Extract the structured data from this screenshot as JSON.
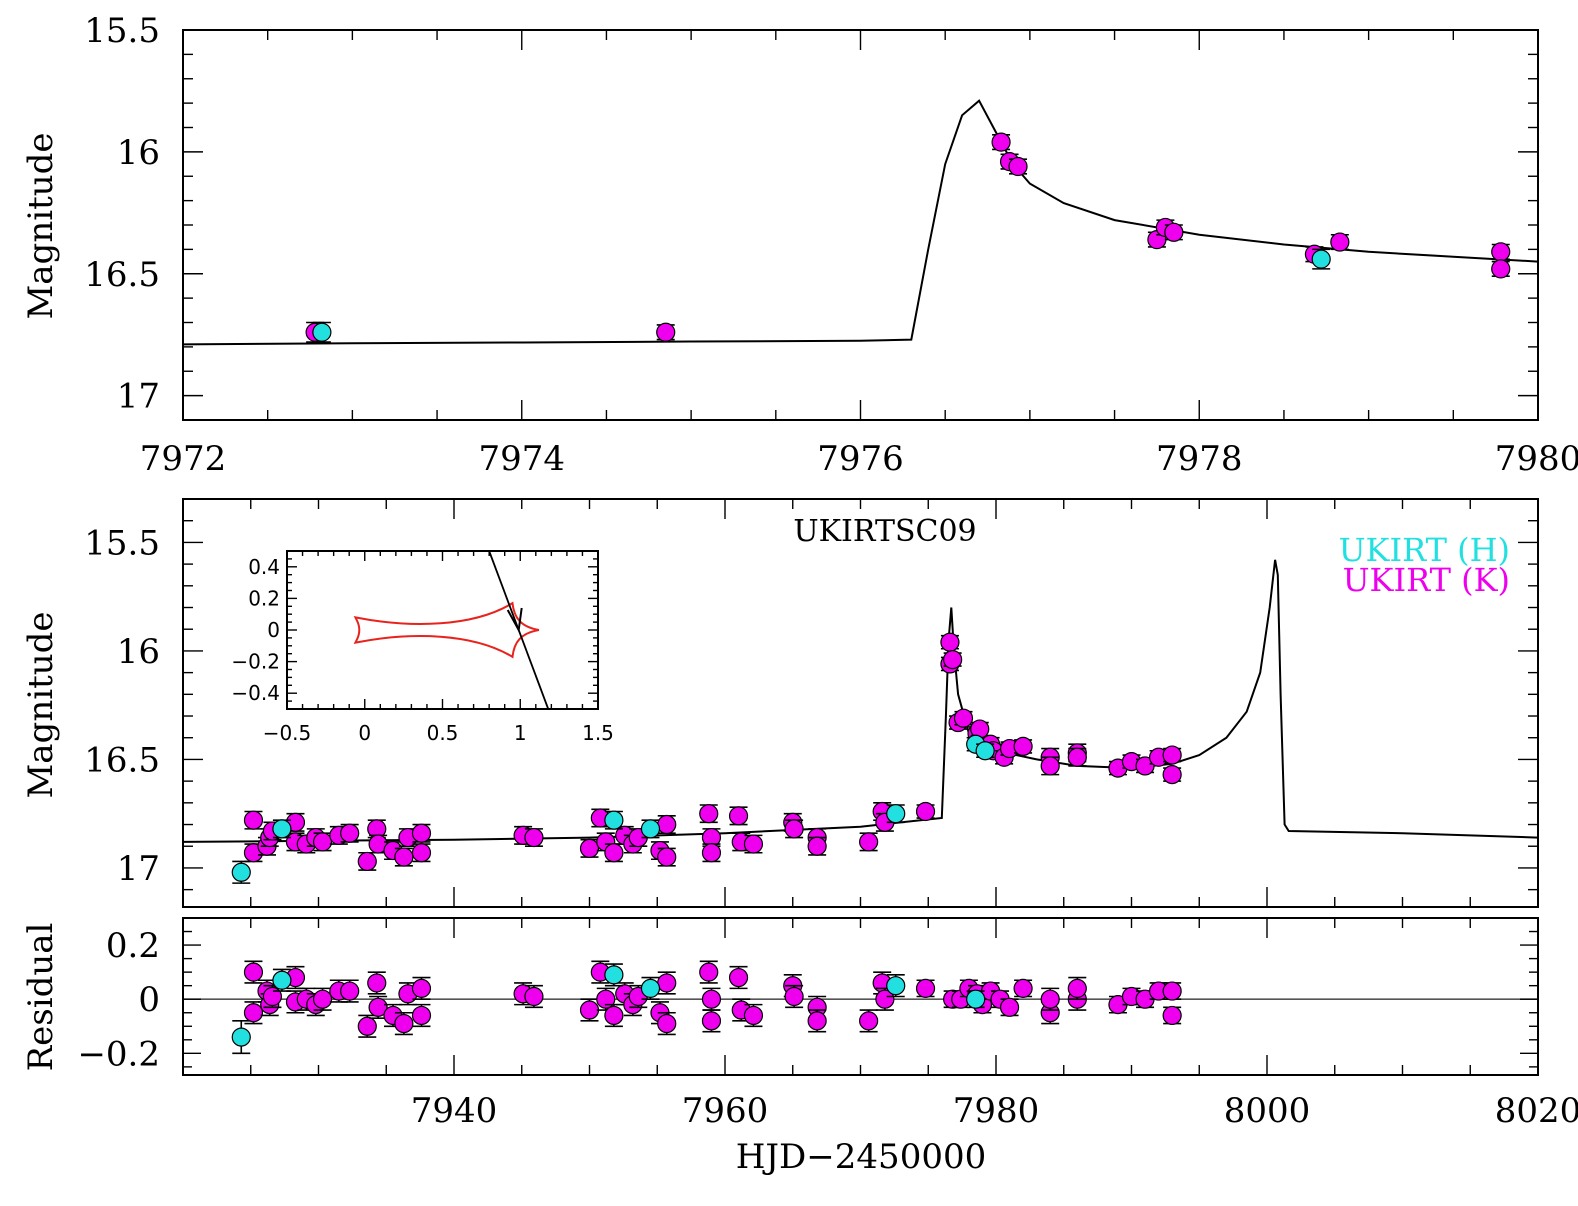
{
  "colors": {
    "H": "#22e0e0",
    "K": "#ee00ee",
    "model": "#000000",
    "caustic": "#e8231d",
    "residual_zero": "#555555"
  },
  "chart_data": [
    {
      "type": "scatter",
      "panel": "top",
      "ylabel": "Magnitude",
      "xlim": [
        7972,
        7980
      ],
      "ylim": [
        17.1,
        15.5
      ],
      "y_inverted": true,
      "xticks": [
        "7972",
        "7974",
        "7976",
        "7978",
        "7980"
      ],
      "yticks": [
        "15.5",
        "16",
        "16.5",
        "17"
      ],
      "model": {
        "x": [
          7972,
          7973,
          7974,
          7975,
          7976,
          7976.3,
          7976.4,
          7976.5,
          7976.6,
          7976.7,
          7976.8,
          7976.9,
          7977.0,
          7977.2,
          7977.5,
          7978,
          7978.5,
          7979,
          7979.5,
          7980
        ],
        "y": [
          16.79,
          16.785,
          16.782,
          16.778,
          16.775,
          16.77,
          16.4,
          16.05,
          15.85,
          15.79,
          15.92,
          16.05,
          16.13,
          16.21,
          16.28,
          16.34,
          16.38,
          16.41,
          16.43,
          16.45
        ]
      },
      "series": [
        {
          "name": "UKIRT (H)",
          "x": [
            7972.82,
            7978.72
          ],
          "y": [
            16.74,
            16.44
          ],
          "err": [
            0.04,
            0.04
          ]
        },
        {
          "name": "UKIRT (K)",
          "x": [
            7972.78,
            7974.85,
            7976.83,
            7976.88,
            7976.93,
            7977.75,
            7977.8,
            7977.85,
            7978.68,
            7978.83,
            7979.78,
            7979.78
          ],
          "y": [
            16.74,
            16.74,
            15.96,
            16.04,
            16.06,
            16.36,
            16.31,
            16.33,
            16.42,
            16.37,
            16.41,
            16.48
          ],
          "err": [
            0.04,
            0.03,
            0.03,
            0.03,
            0.03,
            0.03,
            0.03,
            0.03,
            0.03,
            0.03,
            0.03,
            0.03
          ]
        }
      ]
    },
    {
      "type": "scatter",
      "panel": "middle",
      "title": "UKIRTSC09",
      "ylabel": "Magnitude",
      "xlim": [
        7920,
        8020
      ],
      "ylim": [
        17.18,
        15.3
      ],
      "y_inverted": true,
      "yticks": [
        "15.5",
        "16",
        "16.5",
        "17"
      ],
      "legend": [
        "UKIRT (H)",
        "UKIRT (K)"
      ],
      "legend_position": "top-right",
      "model": {
        "x": [
          7920,
          7930,
          7940,
          7950,
          7960,
          7970,
          7976.0,
          7976.3,
          7976.5,
          7976.7,
          7976.9,
          7977.2,
          7978,
          7980,
          7983,
          7986,
          7990,
          7993,
          7995,
          7997,
          7998.5,
          7999.5,
          8000.2,
          8000.6,
          8000.8,
          8001.0,
          8001.3,
          8001.6,
          8010,
          8020
        ],
        "y": [
          16.88,
          16.875,
          16.87,
          16.86,
          16.84,
          16.81,
          16.77,
          16.3,
          15.95,
          15.8,
          16.0,
          16.2,
          16.38,
          16.46,
          16.5,
          16.53,
          16.54,
          16.52,
          16.48,
          16.4,
          16.28,
          16.1,
          15.8,
          15.58,
          15.65,
          16.2,
          16.8,
          16.83,
          16.84,
          16.86
        ]
      },
      "series": [
        {
          "name": "UKIRT (H)",
          "x": [
            7924.3,
            7927.3,
            7951.8,
            7954.5,
            7972.6,
            7978.5,
            7979.2
          ],
          "y": [
            17.02,
            16.82,
            16.78,
            16.82,
            16.75,
            16.43,
            16.46
          ],
          "err": [
            0.05,
            0.04,
            0.04,
            0.04,
            0.04,
            0.03,
            0.03
          ]
        },
        {
          "name": "UKIRT (K)",
          "x": [
            7925.2,
            7925.2,
            7926.2,
            7926.4,
            7926.6,
            7928.3,
            7928.3,
            7929.1,
            7929.8,
            7930.3,
            7931.5,
            7932.3,
            7933.6,
            7934.3,
            7934.4,
            7935.5,
            7936.3,
            7936.6,
            7937.6,
            7937.6,
            7945.1,
            7945.9,
            7950.0,
            7950.8,
            7951.2,
            7951.8,
            7952.6,
            7953.2,
            7953.6,
            7955.2,
            7955.7,
            7955.7,
            7958.8,
            7959.0,
            7959.0,
            7961.0,
            7961.2,
            7962.1,
            7965.0,
            7965.1,
            7966.8,
            7966.8,
            7970.6,
            7971.6,
            7971.8,
            7974.8,
            7976.6,
            7976.6,
            7976.8,
            7977.2,
            7977.6,
            7978.6,
            7978.8,
            7979.6,
            7979.8,
            7980.6,
            7981.0,
            7982.0,
            7984.0,
            7984.0,
            7986.0,
            7986.0,
            7989.0,
            7990.0,
            7991.0,
            7992.0,
            7993.0,
            7993.0
          ],
          "y": [
            16.78,
            16.93,
            16.9,
            16.86,
            16.83,
            16.79,
            16.88,
            16.89,
            16.86,
            16.88,
            16.85,
            16.84,
            16.97,
            16.82,
            16.89,
            16.92,
            16.95,
            16.86,
            16.84,
            16.93,
            16.85,
            16.86,
            16.91,
            16.77,
            16.88,
            16.93,
            16.85,
            16.89,
            16.86,
            16.92,
            16.95,
            16.8,
            16.75,
            16.86,
            16.93,
            16.76,
            16.88,
            16.89,
            16.79,
            16.82,
            16.86,
            16.9,
            16.88,
            16.74,
            16.79,
            16.74,
            15.96,
            16.06,
            16.04,
            16.33,
            16.31,
            16.38,
            16.36,
            16.43,
            16.46,
            16.49,
            16.45,
            16.44,
            16.49,
            16.53,
            16.47,
            16.49,
            16.54,
            16.51,
            16.53,
            16.49,
            16.48,
            16.57
          ],
          "err": [
            0.04,
            0.04,
            0.04,
            0.04,
            0.04,
            0.04,
            0.04,
            0.04,
            0.04,
            0.04,
            0.04,
            0.04,
            0.04,
            0.04,
            0.04,
            0.04,
            0.04,
            0.04,
            0.04,
            0.04,
            0.04,
            0.04,
            0.04,
            0.04,
            0.04,
            0.04,
            0.04,
            0.04,
            0.04,
            0.04,
            0.04,
            0.04,
            0.04,
            0.04,
            0.04,
            0.04,
            0.04,
            0.04,
            0.04,
            0.04,
            0.04,
            0.04,
            0.04,
            0.04,
            0.04,
            0.03,
            0.03,
            0.03,
            0.03,
            0.03,
            0.03,
            0.03,
            0.03,
            0.03,
            0.03,
            0.03,
            0.03,
            0.03,
            0.04,
            0.04,
            0.04,
            0.04,
            0.03,
            0.03,
            0.03,
            0.03,
            0.03,
            0.03
          ]
        }
      ]
    },
    {
      "type": "scatter",
      "panel": "residual",
      "ylabel": "Residual",
      "xlabel": "HJD−2450000",
      "xlim": [
        7920,
        8020
      ],
      "ylim": [
        -0.28,
        0.3
      ],
      "xticks": [
        "7940",
        "7960",
        "7980",
        "8000",
        "8020"
      ],
      "yticks": [
        "0.2",
        "0",
        "−0.2"
      ],
      "series": [
        {
          "name": "UKIRT (H)",
          "x": [
            7924.3,
            7927.3,
            7951.8,
            7954.5,
            7972.6,
            7978.5
          ],
          "y": [
            -0.14,
            0.07,
            0.09,
            0.04,
            0.05,
            0.0
          ],
          "err": [
            0.06,
            0.04,
            0.04,
            0.04,
            0.04,
            0.03
          ]
        },
        {
          "name": "UKIRT (K)",
          "x": [
            7925.2,
            7925.2,
            7926.2,
            7926.4,
            7926.6,
            7928.3,
            7928.3,
            7929.1,
            7929.8,
            7930.3,
            7931.5,
            7932.3,
            7933.6,
            7934.3,
            7934.4,
            7935.5,
            7936.3,
            7936.6,
            7937.6,
            7937.6,
            7945.1,
            7945.9,
            7950.0,
            7950.8,
            7951.2,
            7951.8,
            7952.6,
            7953.2,
            7953.6,
            7955.2,
            7955.7,
            7955.7,
            7958.8,
            7959.0,
            7959.0,
            7961.0,
            7961.2,
            7962.1,
            7965.0,
            7965.1,
            7966.8,
            7966.8,
            7970.6,
            7971.6,
            7971.8,
            7974.8,
            7976.8,
            7977.4,
            7978.0,
            7978.6,
            7979.0,
            7979.6,
            7980.3,
            7981.0,
            7982.0,
            7984.0,
            7984.0,
            7986.0,
            7986.0,
            7989.0,
            7990.0,
            7991.0,
            7992.0,
            7993.0,
            7993.0
          ],
          "y": [
            0.1,
            -0.05,
            0.03,
            -0.02,
            0.01,
            0.08,
            -0.01,
            0.0,
            -0.02,
            0.0,
            0.03,
            0.03,
            -0.1,
            0.06,
            -0.03,
            -0.06,
            -0.09,
            0.02,
            0.04,
            -0.06,
            0.02,
            0.01,
            -0.04,
            0.1,
            0.0,
            -0.06,
            0.02,
            -0.02,
            0.01,
            -0.05,
            -0.09,
            0.06,
            0.1,
            0.0,
            -0.08,
            0.08,
            -0.04,
            -0.06,
            0.05,
            0.01,
            -0.03,
            -0.08,
            -0.08,
            0.06,
            0.0,
            0.04,
            0.0,
            0.0,
            0.04,
            0.02,
            -0.02,
            0.03,
            0.0,
            -0.03,
            0.04,
            -0.05,
            0.0,
            0.0,
            0.04,
            -0.02,
            0.01,
            0.0,
            0.03,
            0.03,
            -0.06
          ],
          "err": [
            0.04,
            0.04,
            0.04,
            0.04,
            0.04,
            0.04,
            0.04,
            0.04,
            0.04,
            0.04,
            0.04,
            0.04,
            0.04,
            0.04,
            0.04,
            0.04,
            0.04,
            0.04,
            0.04,
            0.04,
            0.04,
            0.04,
            0.04,
            0.04,
            0.04,
            0.04,
            0.04,
            0.04,
            0.04,
            0.04,
            0.04,
            0.04,
            0.04,
            0.04,
            0.04,
            0.04,
            0.04,
            0.04,
            0.04,
            0.04,
            0.04,
            0.04,
            0.04,
            0.04,
            0.04,
            0.03,
            0.03,
            0.03,
            0.03,
            0.03,
            0.03,
            0.03,
            0.03,
            0.03,
            0.03,
            0.04,
            0.04,
            0.04,
            0.04,
            0.03,
            0.03,
            0.03,
            0.03,
            0.03,
            0.03
          ]
        }
      ]
    },
    {
      "type": "line",
      "panel": "inset",
      "xlim": [
        -0.5,
        1.5
      ],
      "ylim": [
        -0.5,
        0.5
      ],
      "xticks": [
        "−0.5",
        "0",
        "0.5",
        "1",
        "1.5"
      ],
      "yticks": [
        "0.4",
        "0.2",
        "0",
        "−0.2",
        "−0.4"
      ],
      "caustic_cusps": {
        "left": [
          -0.05,
          0.0
        ],
        "right": [
          1.12,
          0.0
        ],
        "top": [
          0.95,
          0.17
        ],
        "bottom": [
          0.95,
          -0.17
        ]
      },
      "trajectory": {
        "x": [
          0.8,
          1.18
        ],
        "y": [
          0.5,
          -0.5
        ]
      }
    }
  ]
}
